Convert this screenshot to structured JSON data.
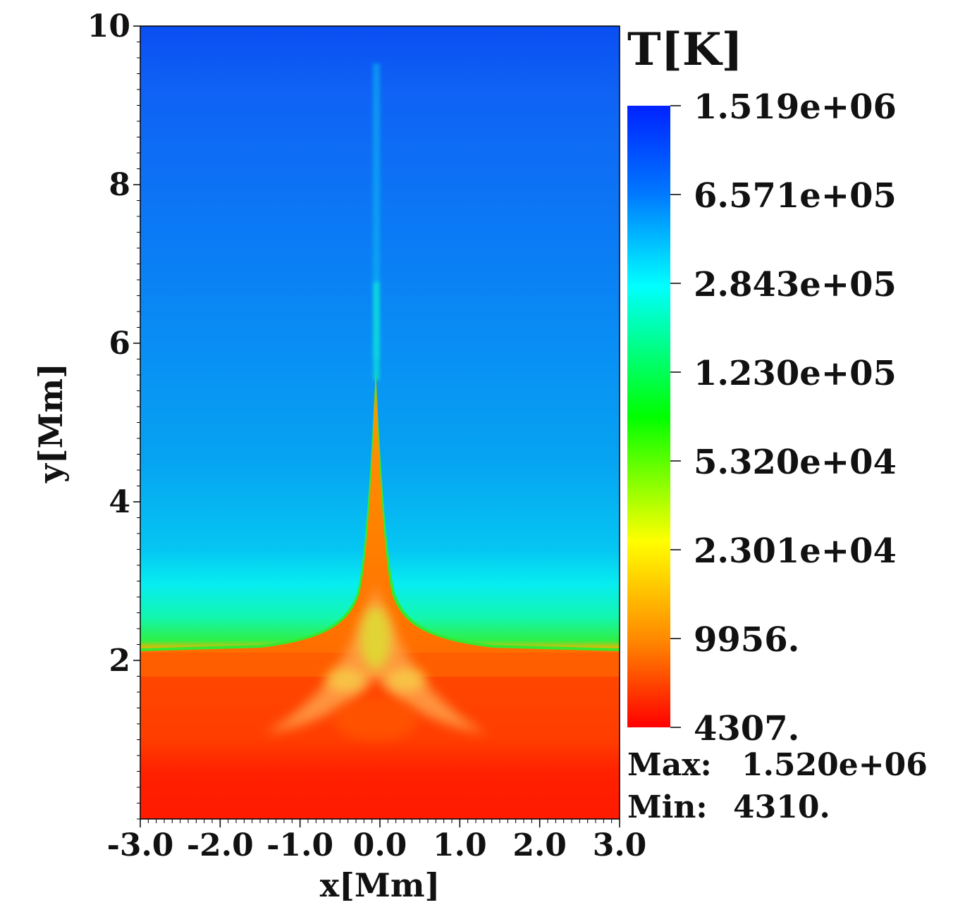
{
  "chart_data": {
    "type": "heatmap",
    "title": "",
    "xlabel": "x[Mm]",
    "ylabel": "y[Mm]",
    "xlim": [
      -3.0,
      3.0
    ],
    "ylim": [
      0,
      10
    ],
    "x_ticks": [
      -3.0,
      -2.0,
      -1.0,
      0.0,
      1.0,
      2.0,
      3.0
    ],
    "x_tick_labels": [
      "-3.0",
      "-2.0",
      "-1.0",
      "0.0",
      "1.0",
      "2.0",
      "3.0"
    ],
    "y_ticks": [
      2,
      4,
      6,
      8,
      10
    ],
    "y_tick_labels": [
      "2",
      "4",
      "6",
      "8",
      "10"
    ],
    "colorbar": {
      "label": "T[K]",
      "scale": "log",
      "tick_labels": [
        "1.519e+06",
        "6.571e+05",
        "2.843e+05",
        "1.230e+05",
        "5.320e+04",
        "2.301e+04",
        "9956.",
        "4307."
      ],
      "tick_values": [
        1519000,
        657100,
        284300,
        123000,
        53200,
        23010,
        9956,
        4307
      ],
      "colors": [
        "#0022ff",
        "#0077ff",
        "#00ffff",
        "#00ff00",
        "#ffff00",
        "#ff8800",
        "#ff0000"
      ]
    },
    "stats": {
      "max_label": "Max:",
      "max_value": "1.520e+06",
      "min_label": "Min:",
      "min_value": "4310."
    },
    "features": {
      "transition_region_height": 2.1,
      "jet_apex_height": 5.7,
      "jet_center_x": 0.0
    }
  }
}
